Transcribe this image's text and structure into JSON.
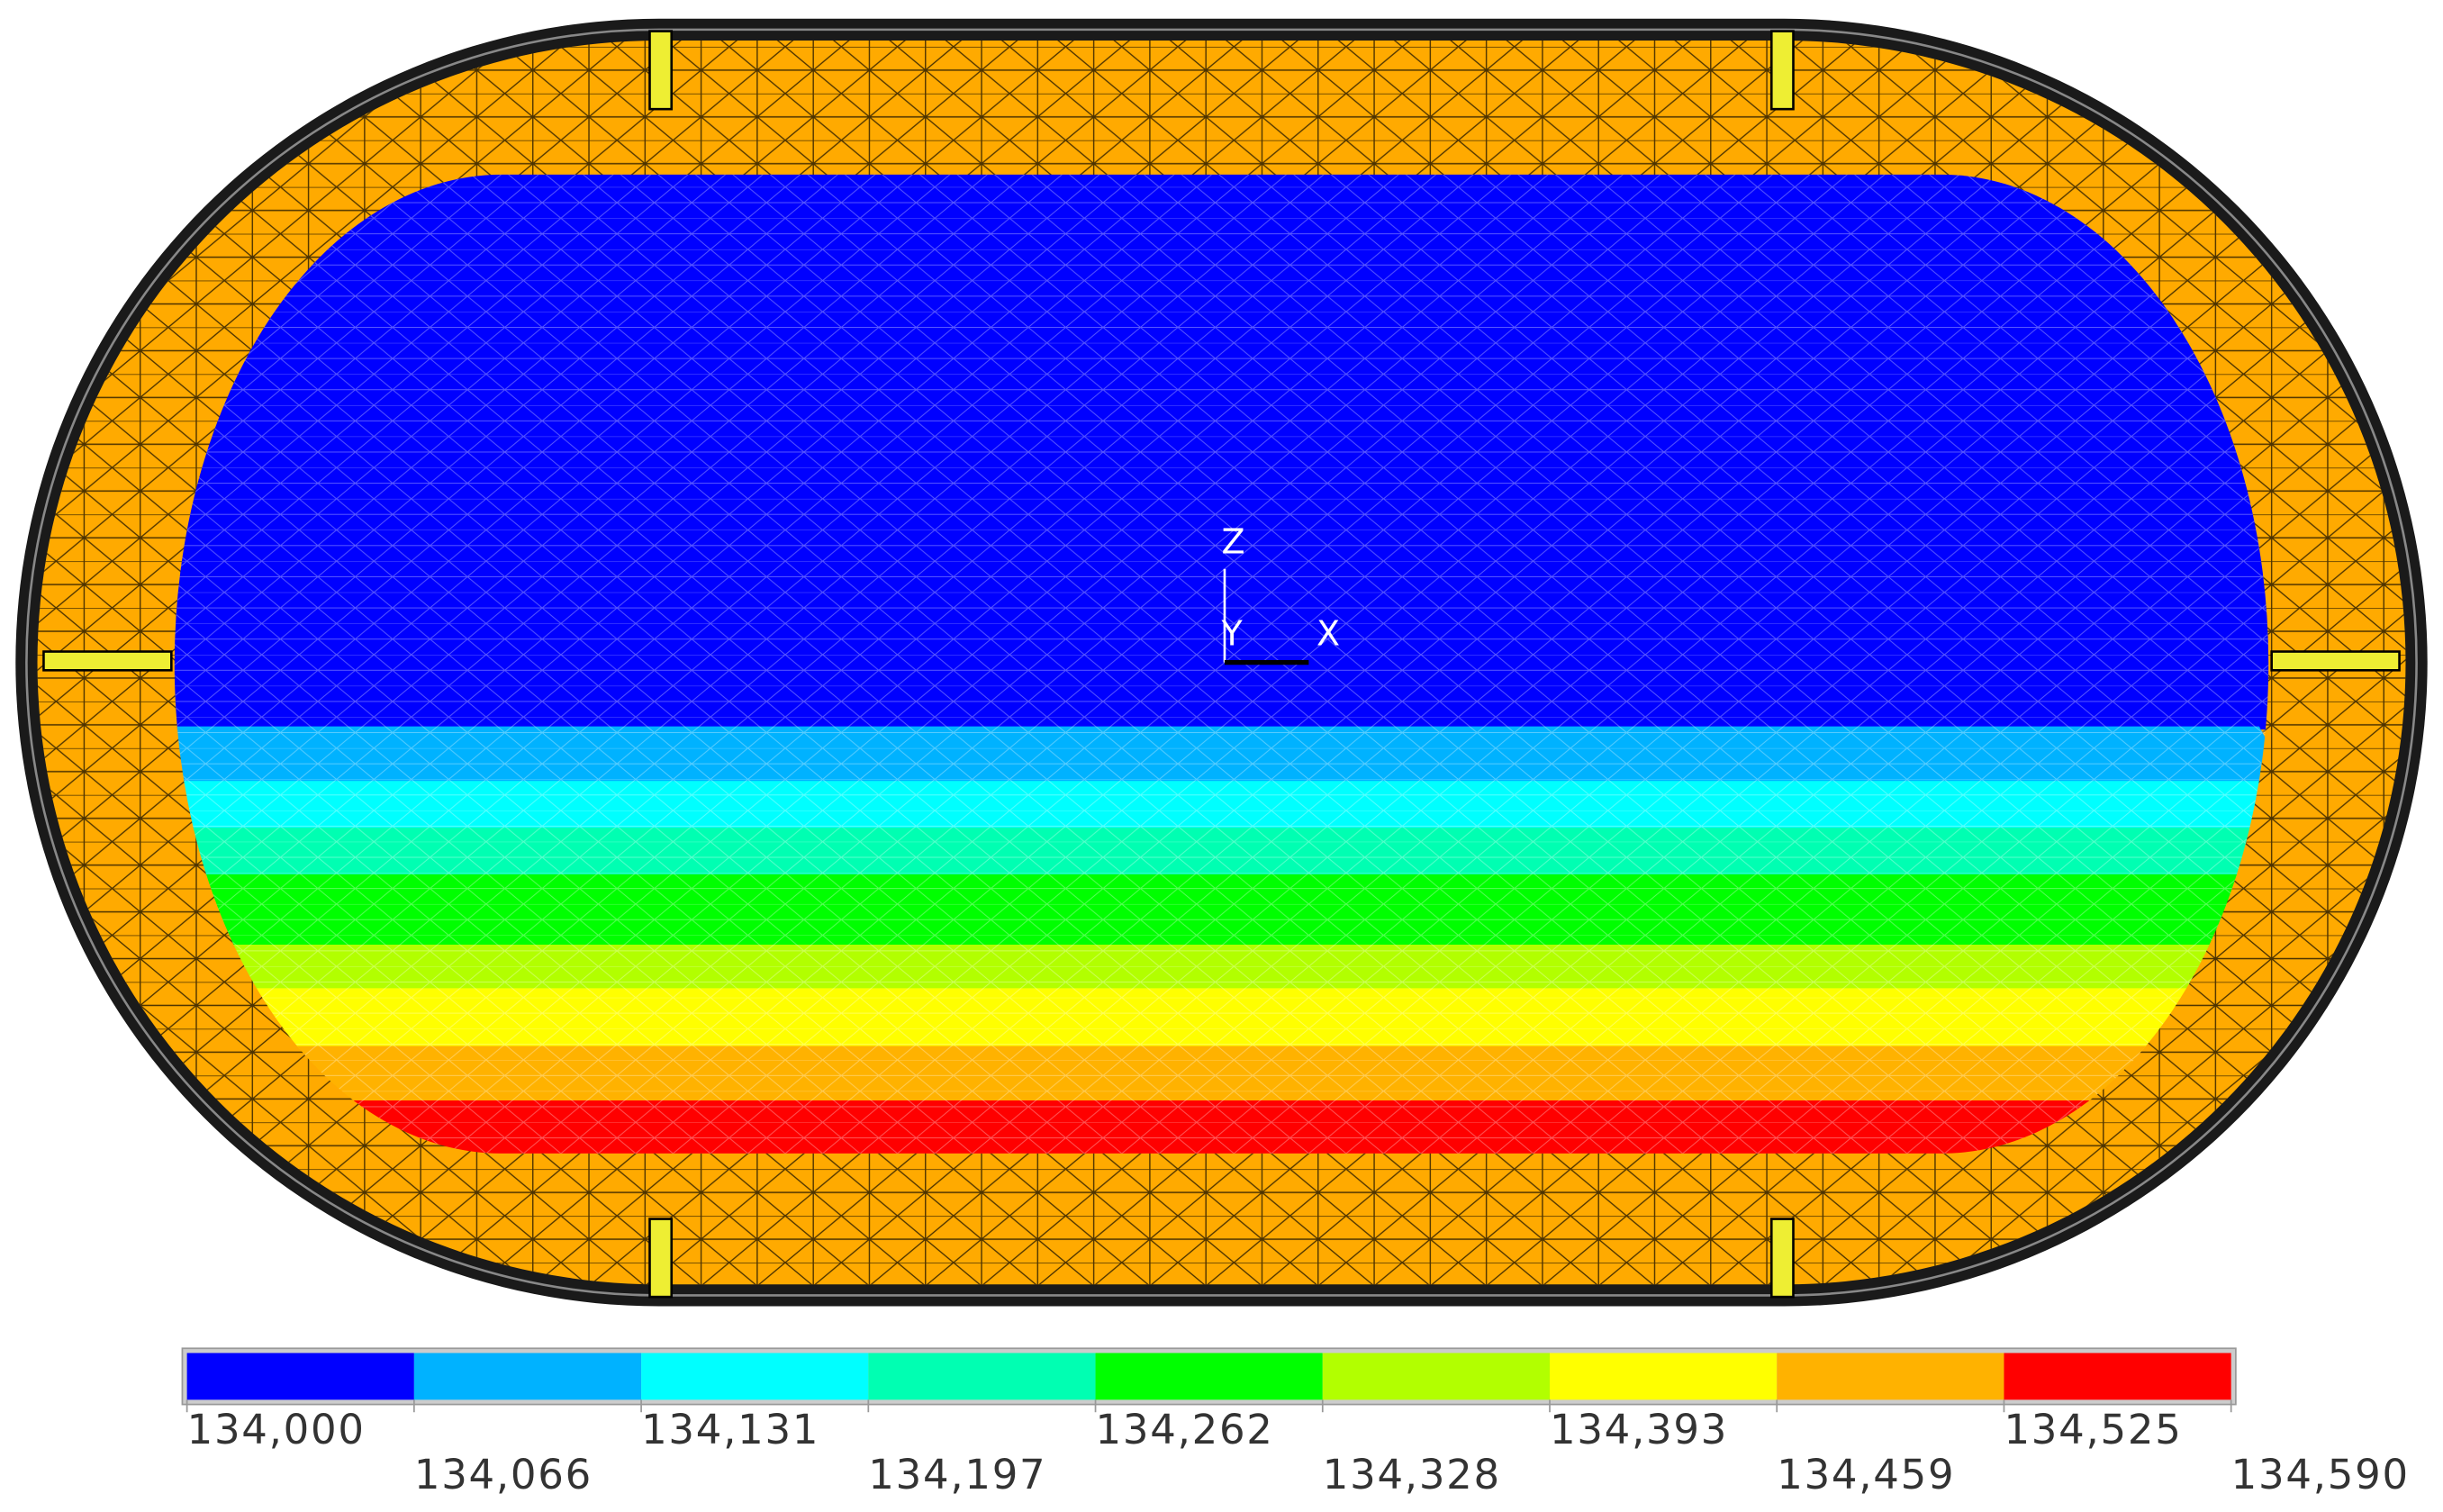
{
  "axes": {
    "z": "Z",
    "y": "Y",
    "x": "X"
  },
  "legend": {
    "colors": [
      "#0000ff",
      "#00b2ff",
      "#00ffff",
      "#00ffb2",
      "#00ff00",
      "#b2ff00",
      "#ffff00",
      "#ffb200",
      "#ff0000"
    ],
    "labels": [
      "134,000",
      "134,066",
      "134,131",
      "134,197",
      "134,262",
      "134,328",
      "134,393",
      "134,459",
      "134,525",
      "134,590"
    ]
  }
}
